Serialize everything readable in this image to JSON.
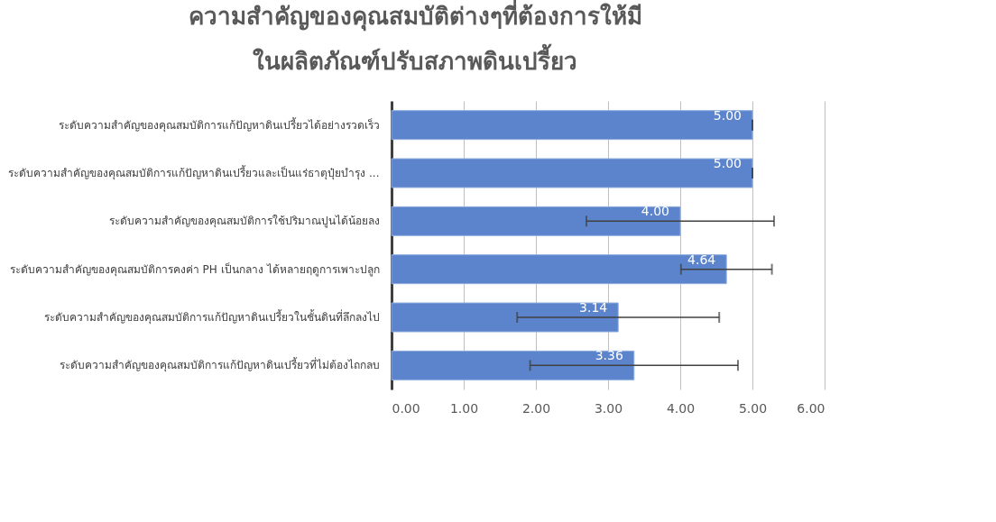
{
  "chart_data": {
    "type": "bar",
    "orientation": "horizontal",
    "title": [
      "ความสำคัญของคุณสมบัติต่างๆที่ต้องการให้มี",
      "ในผลิตภัณฑ์ปรับสภาพดินเปรี้ยว"
    ],
    "categories": [
      "ระดับความสำคัญของคุณสมบัติการแก้ปัญหาดินเปรี้ยวได้อย่างรวดเร็ว",
      "ระดับความสำคัญของคุณสมบัติการแก้ปัญหาดินเปรี้ยวและเป็นแร่ธาตุปุ๋ยบำรุง ...",
      "ระดับความสำคัญของคุณสมบัติการใช้ปริมาณปูนได้น้อยลง",
      "ระดับความสำคัญของคุณสมบัติการคงค่า  PH เป็นกลาง ได้หลายฤดูการเพาะปลูก",
      "ระดับความสำคัญของคุณสมบัติการแก้ปัญหาดินเปรี้ยวในชั้นดินที่ลึกลงไป",
      "ระดับความสำคัญของคุณสมบัติการแก้ปัญหาดินเปรี้ยวที่ไม่ต้องไถกลบ"
    ],
    "values": [
      5.0,
      5.0,
      4.0,
      4.64,
      3.14,
      3.36
    ],
    "errors": [
      0,
      0,
      1.3,
      0.63,
      1.4,
      1.44
    ],
    "color": "#5b84cc",
    "xlim": [
      0,
      6
    ],
    "xticks": [
      {
        "value": 0,
        "label": "0.00"
      },
      {
        "value": 1,
        "label": "1.00"
      },
      {
        "value": 2,
        "label": "2.00"
      },
      {
        "value": 3,
        "label": "3.00"
      },
      {
        "value": 4,
        "label": "4.00"
      },
      {
        "value": 5,
        "label": "5.00"
      },
      {
        "value": 6,
        "label": "6.00"
      }
    ],
    "value_labels": [
      "5.00",
      "5.00",
      "4.00",
      "4.64",
      "3.14",
      "3.36"
    ],
    "grid": "x"
  }
}
